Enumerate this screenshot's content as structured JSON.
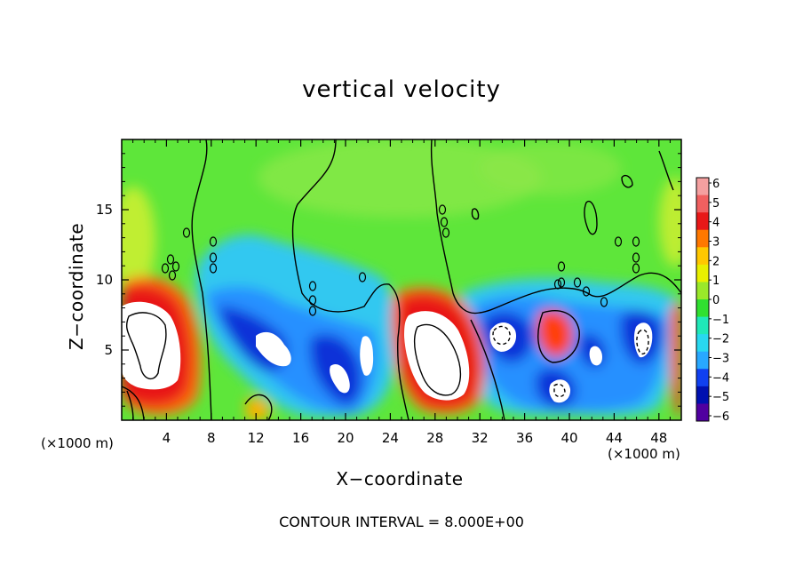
{
  "chart_data": {
    "type": "heatmap",
    "title": "vertical velocity",
    "xlabel": "X−coordinate",
    "ylabel": "Z−coordinate",
    "x_unit_left": "(×1000 m)",
    "x_unit_right": "(×1000 m)",
    "xlim": [
      0,
      50
    ],
    "ylim": [
      0,
      20
    ],
    "x_ticks": [
      4,
      8,
      12,
      16,
      20,
      24,
      28,
      32,
      36,
      40,
      44,
      48
    ],
    "y_ticks": [
      5,
      10,
      15
    ],
    "colorbar": {
      "ticks": [
        "6",
        "5",
        "4",
        "3",
        "2",
        "1",
        "0",
        "−1",
        "−2",
        "−3",
        "−4",
        "−5",
        "−6"
      ],
      "range": [
        -6,
        6
      ],
      "colors": [
        "#f4a0a0",
        "#f06060",
        "#e81818",
        "#ff7800",
        "#ffc800",
        "#e8f000",
        "#9ae82a",
        "#30e030",
        "#20e8b8",
        "#28d8f0",
        "#28a8ff",
        "#1040f0",
        "#0010b0",
        "#5000a0"
      ]
    },
    "features": [
      {
        "label": "updraft core",
        "x": 2.5,
        "z": 5.5,
        "w": 10
      },
      {
        "label": "updraft core",
        "x": 29,
        "z": 5,
        "w": 10
      },
      {
        "label": "updraft",
        "x": 39,
        "z": 6,
        "w": 5
      },
      {
        "label": "updraft",
        "x": 12.5,
        "z": 1,
        "w": 3
      },
      {
        "label": "downdraft core",
        "x": 13.5,
        "z": 5.5,
        "w": -10
      },
      {
        "label": "downdraft core",
        "x": 19.5,
        "z": 3,
        "w": -9
      },
      {
        "label": "downdraft core",
        "x": 22,
        "z": 4.5,
        "w": -9
      },
      {
        "label": "downdraft core",
        "x": 34,
        "z": 6,
        "w": -10
      },
      {
        "label": "downdraft core",
        "x": 39,
        "z": 2,
        "w": -10
      },
      {
        "label": "downdraft core",
        "x": 42.5,
        "z": 4.5,
        "w": -8
      },
      {
        "label": "downdraft core",
        "x": 46.5,
        "z": 5.5,
        "w": -9
      }
    ],
    "footnote": "CONTOUR INTERVAL = 8.000E+00"
  }
}
